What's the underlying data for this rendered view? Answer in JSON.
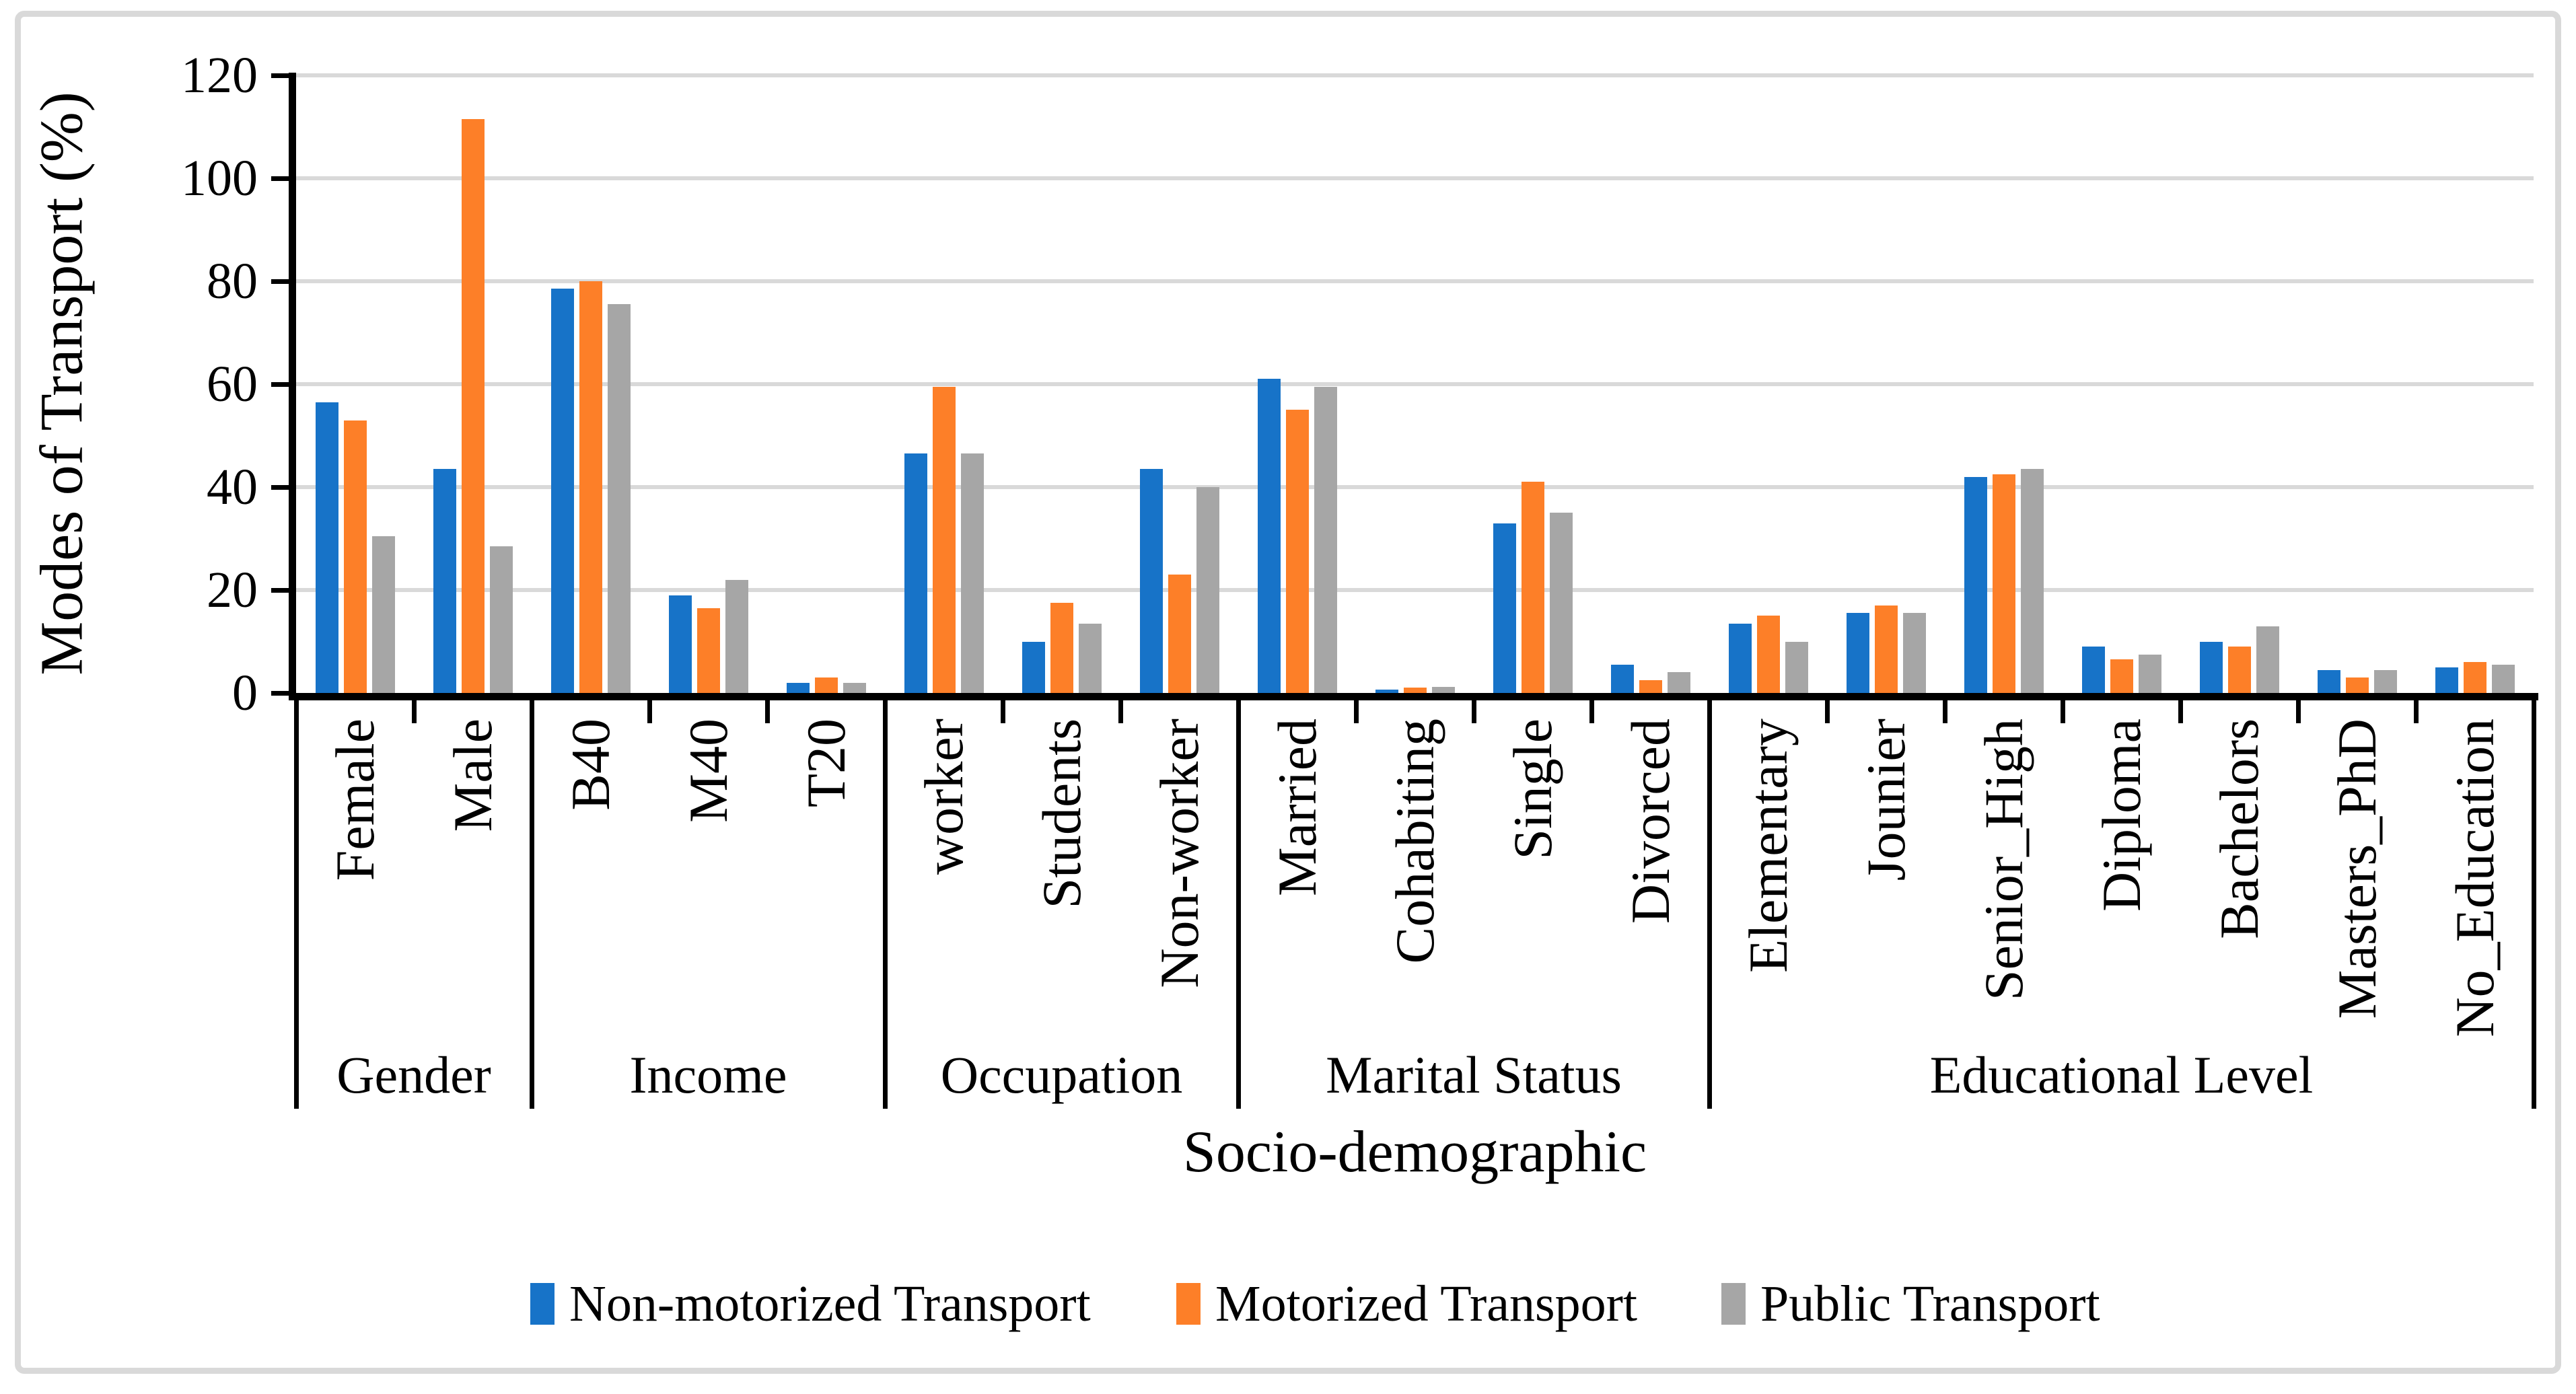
{
  "figure": {
    "background": "#ffffff",
    "border_color": "#d9d9d9"
  },
  "chart_data": {
    "type": "bar",
    "title": "",
    "ylabel": "Modes of Transport (%)",
    "xlabel": "Socio-demographic",
    "ylim": [
      0,
      120
    ],
    "yticks": [
      0,
      20,
      40,
      60,
      80,
      100,
      120
    ],
    "grid": true,
    "gridline_color": "#d9d9d9",
    "axis_color": "#000000",
    "legend_position": "bottom",
    "groups": [
      {
        "label": "Gender",
        "categories": [
          "Female",
          "Male"
        ]
      },
      {
        "label": "Income",
        "categories": [
          "B40",
          "M40",
          "T20"
        ]
      },
      {
        "label": "Occupation",
        "categories": [
          "worker",
          "Students",
          "Non-worker"
        ]
      },
      {
        "label": "Marital Status",
        "categories": [
          "Married",
          "Cohabiting",
          "Single",
          "Divorced"
        ]
      },
      {
        "label": "Educational Level",
        "categories": [
          "Elementary",
          "Jounier",
          "Senior_High",
          "Diploma",
          "Bachelors",
          "Masters_PhD",
          "No_Education"
        ]
      }
    ],
    "series": [
      {
        "name": "Non-motorized Transport",
        "color": "#1773C8",
        "values": [
          56.5,
          43.5,
          78.5,
          19,
          2,
          46.5,
          10,
          43.5,
          61,
          0.7,
          33,
          5.5,
          13.5,
          15.5,
          42,
          9,
          10,
          4.5,
          5
        ]
      },
      {
        "name": "Motorized Transport",
        "color": "#FD7F28",
        "values": [
          53,
          111.5,
          80,
          16.5,
          3,
          59.5,
          17.5,
          23,
          55,
          1,
          41,
          2.5,
          15,
          17,
          42.5,
          6.5,
          9,
          3,
          6
        ]
      },
      {
        "name": "Public Transport",
        "color": "#A6A6A6",
        "values": [
          30.5,
          28.5,
          75.5,
          22,
          2,
          46.5,
          13.5,
          40,
          59.5,
          1.2,
          35,
          4,
          10,
          15.5,
          43.5,
          7.5,
          13,
          4.5,
          5.5
        ]
      }
    ],
    "legend_x_positions": [
      788,
      1748,
      2558
    ]
  }
}
